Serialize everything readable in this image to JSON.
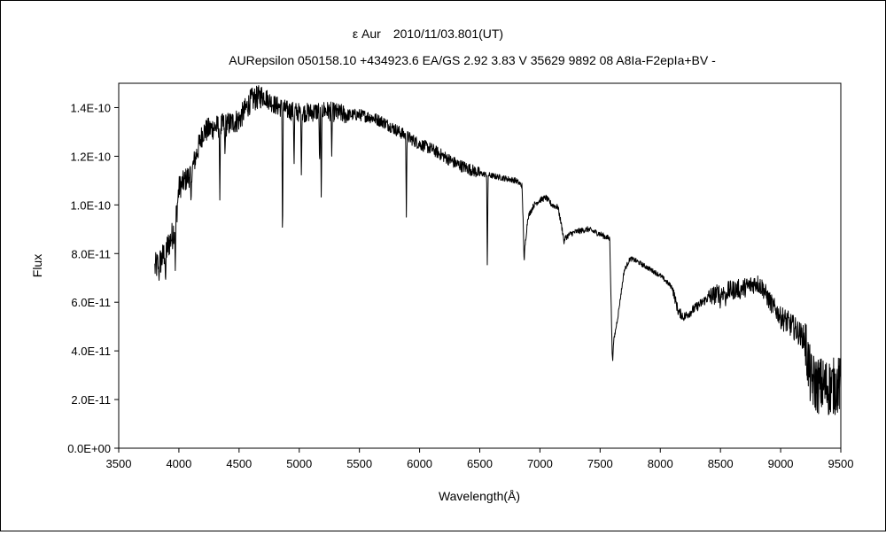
{
  "chart_data": {
    "type": "line",
    "title": "ε Aur　2010/11/03.801(UT)",
    "subtitle": "AURepsilon 050158.10 +434923.6 EA/GS 2.92 3.83 V 35629 9892 08 A8Ia-F2epIa+BV -",
    "xlabel": "Wavelength(Å)",
    "ylabel": "Flux",
    "xlim": [
      3500,
      9500
    ],
    "ylim": [
      0,
      1.5e-10
    ],
    "x_ticks": [
      3500,
      4000,
      4500,
      5000,
      5500,
      6000,
      6500,
      7000,
      7500,
      8000,
      8500,
      9000,
      9500
    ],
    "y_ticks": [
      0,
      2e-11,
      4e-11,
      6e-11,
      8e-11,
      1e-10,
      1.2e-10,
      1.4e-10
    ],
    "x_tick_labels": [
      "3500",
      "4000",
      "4500",
      "5000",
      "5500",
      "6000",
      "6500",
      "7000",
      "7500",
      "8000",
      "8500",
      "9000",
      "9500"
    ],
    "y_tick_labels": [
      "0.0E+00",
      "2.0E-11",
      "4.0E-11",
      "6.0E-11",
      "8.0E-11",
      "1.0E-10",
      "1.2E-10",
      "1.4E-10"
    ],
    "grid": false,
    "legend": "none",
    "line_color": "#000000",
    "series": [
      {
        "continuum": [
          [
            3800,
            7.4e-11
          ],
          [
            3850,
            7.7e-11
          ],
          [
            3900,
            8.2e-11
          ],
          [
            3950,
            8.8e-11
          ],
          [
            3980,
            9.6e-11
          ],
          [
            4000,
            1.07e-10
          ],
          [
            4100,
            1.13e-10
          ],
          [
            4200,
            1.3e-10
          ],
          [
            4300,
            1.32e-10
          ],
          [
            4400,
            1.33e-10
          ],
          [
            4500,
            1.35e-10
          ],
          [
            4600,
            1.43e-10
          ],
          [
            4700,
            1.45e-10
          ],
          [
            4800,
            1.41e-10
          ],
          [
            4900,
            1.39e-10
          ],
          [
            5000,
            1.38e-10
          ],
          [
            5100,
            1.38e-10
          ],
          [
            5200,
            1.39e-10
          ],
          [
            5300,
            1.38e-10
          ],
          [
            5400,
            1.37e-10
          ],
          [
            5500,
            1.37e-10
          ],
          [
            5600,
            1.36e-10
          ],
          [
            5700,
            1.34e-10
          ],
          [
            5800,
            1.31e-10
          ],
          [
            5900,
            1.28e-10
          ],
          [
            6000,
            1.25e-10
          ],
          [
            6100,
            1.23e-10
          ],
          [
            6200,
            1.2e-10
          ],
          [
            6300,
            1.17e-10
          ],
          [
            6400,
            1.15e-10
          ],
          [
            6500,
            1.13e-10
          ],
          [
            6600,
            1.12e-10
          ],
          [
            6700,
            1.11e-10
          ],
          [
            6800,
            1.1e-10
          ],
          [
            6850,
            1.08e-10
          ],
          [
            6870,
            8e-11
          ],
          [
            6900,
            9.5e-11
          ],
          [
            6950,
            1e-10
          ],
          [
            7000,
            1.02e-10
          ],
          [
            7050,
            1.03e-10
          ],
          [
            7100,
            1e-10
          ],
          [
            7150,
            9.9e-11
          ],
          [
            7200,
            8.6e-11
          ],
          [
            7250,
            8.8e-11
          ],
          [
            7300,
            8.9e-11
          ],
          [
            7400,
            9e-11
          ],
          [
            7500,
            8.8e-11
          ],
          [
            7580,
            8.6e-11
          ],
          [
            7600,
            4e-11
          ],
          [
            7650,
            5.5e-11
          ],
          [
            7700,
            7.3e-11
          ],
          [
            7750,
            7.8e-11
          ],
          [
            7800,
            7.7e-11
          ],
          [
            7900,
            7.4e-11
          ],
          [
            8000,
            7.1e-11
          ],
          [
            8100,
            6.6e-11
          ],
          [
            8150,
            5.6e-11
          ],
          [
            8200,
            5.4e-11
          ],
          [
            8300,
            5.8e-11
          ],
          [
            8400,
            6.2e-11
          ],
          [
            8500,
            6.4e-11
          ],
          [
            8600,
            6.5e-11
          ],
          [
            8700,
            6.6e-11
          ],
          [
            8800,
            6.8e-11
          ],
          [
            8850,
            6.6e-11
          ],
          [
            8900,
            6.1e-11
          ],
          [
            9000,
            5.4e-11
          ],
          [
            9100,
            5e-11
          ],
          [
            9200,
            4.5e-11
          ],
          [
            9250,
            2.8e-11
          ],
          [
            9300,
            2.6e-11
          ],
          [
            9400,
            2.5e-11
          ],
          [
            9500,
            2.6e-11
          ]
        ],
        "absorption_lines": [
          [
            3835,
            6.9e-11
          ],
          [
            3889,
            6.7e-11
          ],
          [
            3970,
            7.3e-11
          ],
          [
            4101,
            1e-10
          ],
          [
            4340,
            1.02e-10
          ],
          [
            4383,
            1.2e-10
          ],
          [
            4861,
            8.1e-11
          ],
          [
            4957,
            1.15e-10
          ],
          [
            5018,
            1.1e-10
          ],
          [
            5169,
            1.15e-10
          ],
          [
            5183,
            1e-10
          ],
          [
            5270,
            1.2e-10
          ],
          [
            5890,
            9.5e-11
          ],
          [
            6563,
            7.2e-11
          ],
          [
            6867,
            7.9e-11
          ],
          [
            7200,
            8.4e-11
          ],
          [
            7605,
            3.6e-11
          ],
          [
            8190,
            5.3e-11
          ],
          [
            8498,
            5.7e-11
          ],
          [
            8542,
            5.8e-11
          ],
          [
            8662,
            6.1e-11
          ]
        ],
        "noise": [
          [
            3800,
            4000,
            6e-12
          ],
          [
            4000,
            4700,
            5e-12
          ],
          [
            4700,
            5400,
            4e-12
          ],
          [
            5400,
            6500,
            2.5e-12
          ],
          [
            6500,
            7600,
            1.2e-12
          ],
          [
            7600,
            8100,
            1e-12
          ],
          [
            8100,
            8400,
            2e-12
          ],
          [
            8400,
            9000,
            4e-12
          ],
          [
            9000,
            9200,
            5e-12
          ],
          [
            9200,
            9500,
            1.2e-11
          ]
        ],
        "sampling_step": 2.5
      }
    ]
  }
}
